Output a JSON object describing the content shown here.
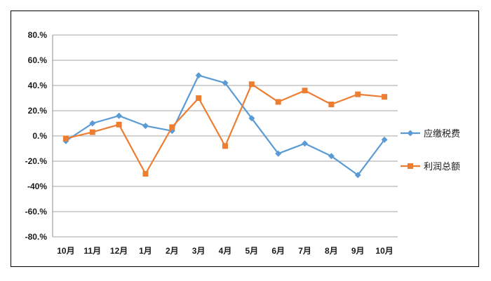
{
  "chart_data": {
    "type": "line",
    "categories": [
      "10月",
      "11月",
      "12月",
      "1月",
      "2月",
      "3月",
      "4月",
      "5月",
      "6月",
      "7月",
      "8月",
      "9月",
      "10月"
    ],
    "y_ticks": [
      "80.%",
      "60.%",
      "40.%",
      "20.%",
      "0.%",
      "-20.%",
      "-40%",
      "-60.%",
      "-80.%"
    ],
    "ylim": [
      -80,
      80
    ],
    "grid": true,
    "legend_position": "right",
    "series": [
      {
        "name": "应缴税费",
        "color": "#5b9bd5",
        "marker": "diamond",
        "values": [
          -4,
          10,
          16,
          8,
          4,
          48,
          42,
          14,
          -14,
          -6,
          -16,
          -31,
          -3
        ]
      },
      {
        "name": "利润总额",
        "color": "#ed7d31",
        "marker": "square",
        "values": [
          -2,
          3,
          9,
          -30,
          7,
          30,
          -8,
          41,
          27,
          36,
          25,
          33,
          31
        ]
      }
    ]
  }
}
